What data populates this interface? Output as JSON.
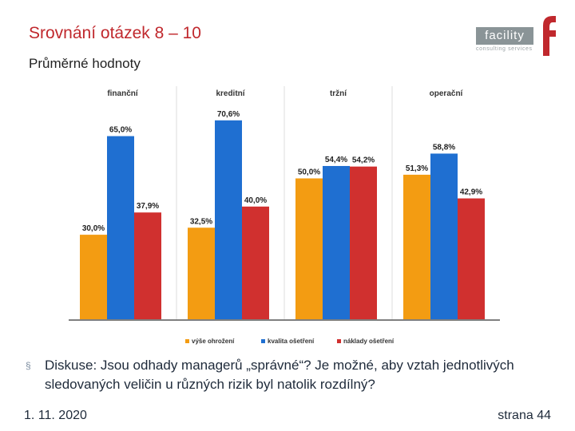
{
  "slide": {
    "title": "Srovnání otázek 8 – 10",
    "subtitle": "Průměrné hodnoty"
  },
  "logo": {
    "name": "facility",
    "tagline": "consulting services"
  },
  "chart_data": {
    "type": "bar",
    "categories": [
      "finanční",
      "kreditní",
      "tržní",
      "operační"
    ],
    "series": [
      {
        "name": "výše ohrožení",
        "color": "#f39c12",
        "values": [
          30.0,
          32.5,
          50.0,
          51.3
        ],
        "labels": [
          "30,0%",
          "32,5%",
          "50,0%",
          "51,3%"
        ]
      },
      {
        "name": "kvalita ošetření",
        "color": "#1f6fd1",
        "values": [
          65.0,
          70.6,
          54.4,
          58.8
        ],
        "labels": [
          "65,0%",
          "70,6%",
          "54,4%",
          "58,8%"
        ]
      },
      {
        "name": "náklady ošetření",
        "color": "#d0302f",
        "values": [
          37.9,
          40.0,
          54.2,
          42.9
        ],
        "labels": [
          "37,9%",
          "40,0%",
          "54,2%",
          "42,9%"
        ]
      }
    ],
    "ylim": [
      0,
      80
    ],
    "grid": false,
    "legend": "bottom"
  },
  "bullet": {
    "marker": "§",
    "text": "Diskuse: Jsou odhady managerů „správné“? Je možné, aby vztah jednotlivých sledovaných veličin u různých rizik byl natolik rozdílný?"
  },
  "footer": {
    "date": "1. 11. 2020",
    "page": "strana 44"
  }
}
